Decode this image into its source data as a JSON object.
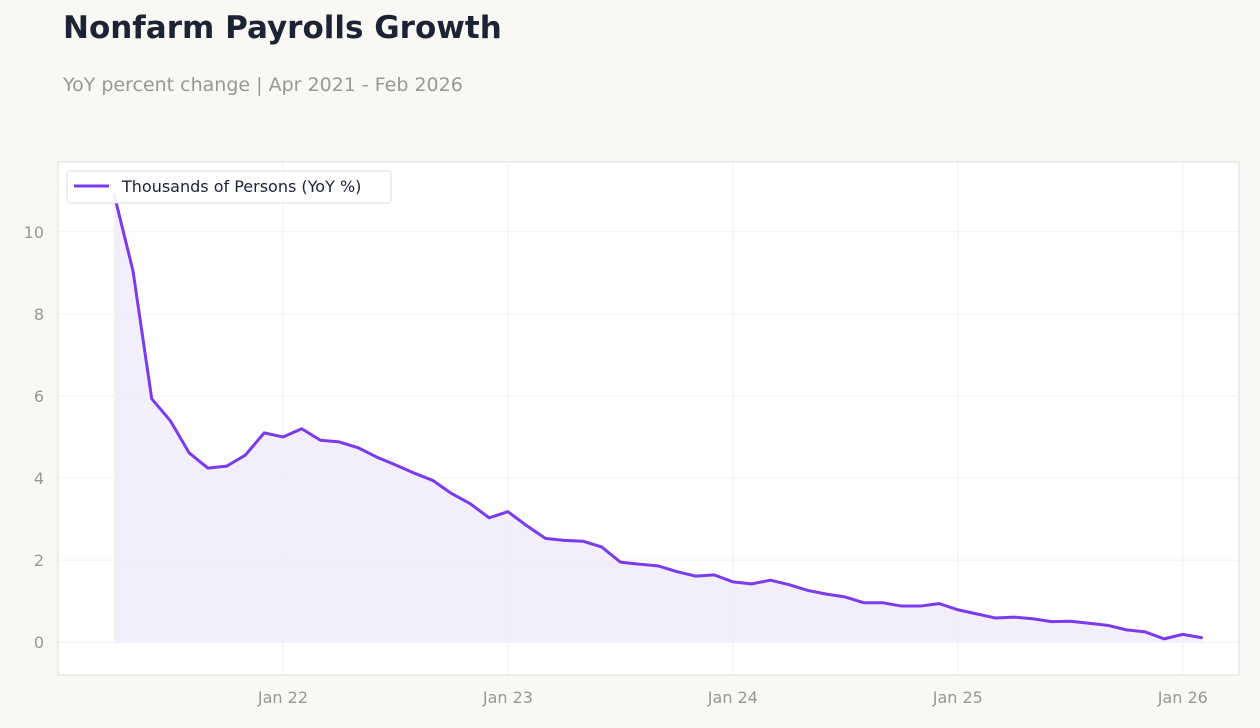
{
  "header": {
    "title": "Nonfarm Payrolls Growth",
    "subtitle": "YoY percent change | Apr 2021 - Feb 2026"
  },
  "colors": {
    "line": "#7c3aed",
    "fill": "#f1ecfc",
    "grid": "#ececec",
    "axis_text": "#979797",
    "plot_border": "#dddddd"
  },
  "chart_data": {
    "type": "area",
    "title": "Nonfarm Payrolls Growth",
    "subtitle": "YoY percent change | Apr 2021 - Feb 2026",
    "xlabel": "",
    "ylabel": "",
    "x_start": "2021-04",
    "x_end": "2026-02",
    "xlim": [
      "2021-01",
      "2026-04"
    ],
    "ylim": [
      -0.8,
      11.7
    ],
    "y_ticks": [
      0,
      2,
      4,
      6,
      8,
      10
    ],
    "x_ticks": [
      {
        "date": "2022-01",
        "label": "Jan 22"
      },
      {
        "date": "2023-01",
        "label": "Jan 23"
      },
      {
        "date": "2024-01",
        "label": "Jan 24"
      },
      {
        "date": "2025-01",
        "label": "Jan 25"
      },
      {
        "date": "2026-01",
        "label": "Jan 26"
      }
    ],
    "grid": true,
    "legend_position": "top-left",
    "series": [
      {
        "name": "Thousands of Persons (YoY %)",
        "values": [
          10.9,
          9.05,
          5.93,
          5.39,
          4.61,
          4.24,
          4.29,
          4.56,
          5.1,
          5.0,
          5.2,
          4.92,
          4.88,
          4.74,
          4.51,
          4.32,
          4.12,
          3.94,
          3.62,
          3.37,
          3.03,
          3.18,
          2.84,
          2.53,
          2.48,
          2.46,
          2.32,
          1.95,
          1.9,
          1.86,
          1.72,
          1.61,
          1.64,
          1.47,
          1.42,
          1.51,
          1.4,
          1.26,
          1.17,
          1.1,
          0.96,
          0.96,
          0.88,
          0.88,
          0.94,
          0.79,
          0.69,
          0.59,
          0.61,
          0.57,
          0.5,
          0.51,
          0.46,
          0.41,
          0.3,
          0.25,
          0.08,
          0.19,
          0.11
        ]
      }
    ]
  }
}
